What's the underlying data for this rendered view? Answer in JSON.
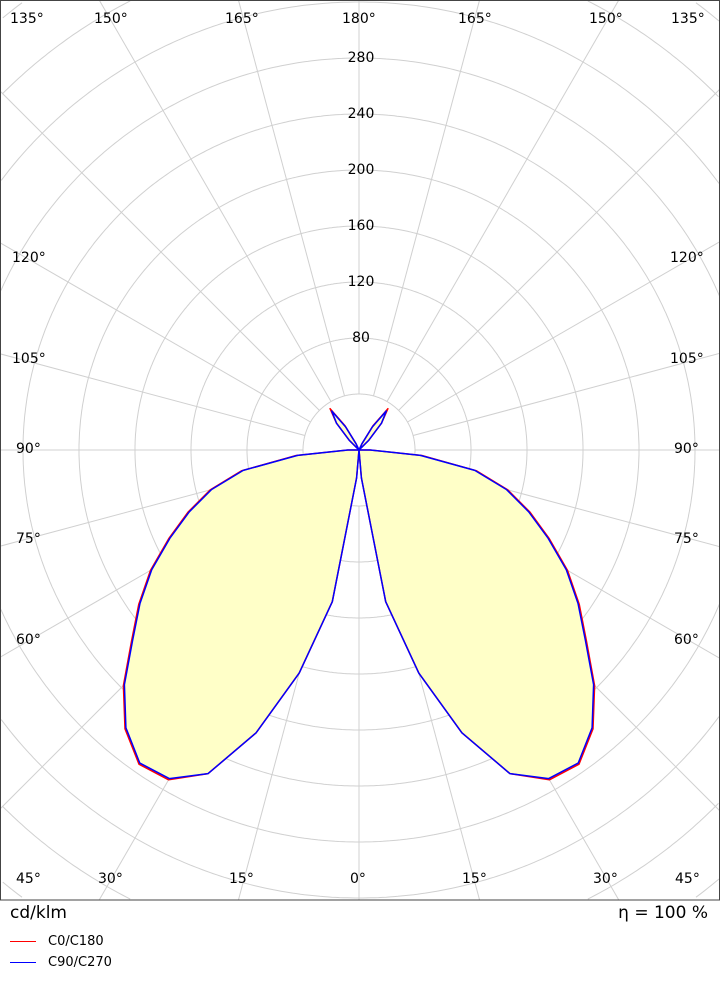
{
  "chart_data": {
    "type": "polar",
    "unit_label": "cd/klm",
    "efficiency_label": "η = 100 %",
    "radial_ticks": [
      80,
      120,
      160,
      200,
      240,
      280
    ],
    "radial_max": 290,
    "ring_step": 40,
    "angle_step": 15,
    "top_angle_labels": [
      "135°",
      "150°",
      "165°",
      "180°",
      "165°",
      "150°",
      "135°"
    ],
    "side_angle_labels": [
      "120°",
      "105°",
      "90°",
      "75°",
      "60°"
    ],
    "bottom_angle_labels": [
      "45°",
      "30°",
      "15°",
      "0°",
      "15°",
      "30°",
      "45°"
    ],
    "angles": [
      0,
      5,
      10,
      15,
      20,
      25,
      30,
      35,
      40,
      45,
      50,
      55,
      60,
      65,
      70,
      75,
      80,
      85,
      90,
      95,
      130,
      135,
      140,
      145,
      150,
      155,
      160,
      180
    ],
    "series": [
      {
        "name": "C0/C180",
        "color": "#ff0000",
        "values": [
          0,
          20,
          110,
          165,
          215,
          255,
          272,
          274,
          260,
          238,
          212,
          192,
          172,
          150,
          130,
          110,
          85,
          45,
          8,
          0,
          0,
          10,
          25,
          36,
          20,
          5,
          0,
          0
        ]
      },
      {
        "name": "C90/C270",
        "color": "#0000ff",
        "values": [
          0,
          20,
          110,
          165,
          215,
          255,
          271,
          273,
          259,
          237,
          211,
          191,
          171,
          149,
          129,
          109,
          84,
          44,
          8,
          0,
          0,
          10,
          25,
          34,
          19,
          5,
          0,
          0
        ]
      }
    ],
    "fill_color": "#ffffc8"
  }
}
